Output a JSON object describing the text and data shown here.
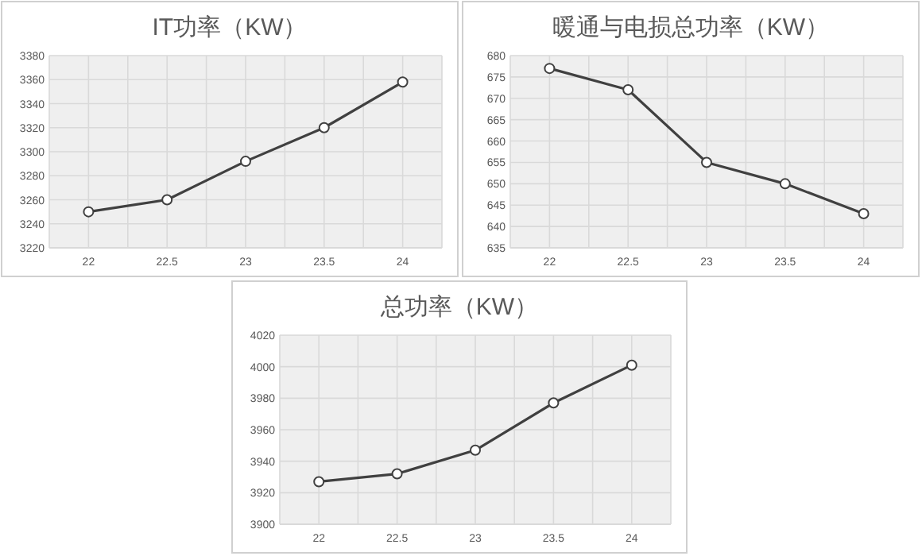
{
  "chart_data": [
    {
      "type": "line",
      "title": "IT功率（KW）",
      "categories": [
        "22",
        "22.5",
        "23",
        "23.5",
        "24"
      ],
      "series": [
        {
          "color": "#404040",
          "values": [
            3250,
            3260,
            3292,
            3320,
            3358
          ]
        }
      ],
      "ylim": [
        3220,
        3380
      ],
      "yticks": [
        3220,
        3240,
        3260,
        3280,
        3300,
        3320,
        3340,
        3360,
        3380
      ],
      "grid": true,
      "marker": "circle",
      "line_style": "solid"
    },
    {
      "type": "line",
      "title": "暖通与电损总功率（KW）",
      "categories": [
        "22",
        "22.5",
        "23",
        "23.5",
        "24"
      ],
      "series": [
        {
          "color": "#404040",
          "values": [
            677,
            672,
            655,
            650,
            643
          ]
        }
      ],
      "ylim": [
        635,
        680
      ],
      "yticks": [
        635,
        640,
        645,
        650,
        655,
        660,
        665,
        670,
        675,
        680
      ],
      "grid": true,
      "marker": "circle",
      "line_style": "solid"
    },
    {
      "type": "line",
      "title": "总功率（KW）",
      "categories": [
        "22",
        "22.5",
        "23",
        "23.5",
        "24"
      ],
      "series": [
        {
          "color": "#404040",
          "values": [
            3927,
            3932,
            3947,
            3977,
            4001
          ]
        }
      ],
      "ylim": [
        3900,
        4020
      ],
      "yticks": [
        3900,
        3920,
        3940,
        3960,
        3980,
        4000,
        4020
      ],
      "grid": true,
      "marker": "circle",
      "line_style": "solid"
    }
  ]
}
